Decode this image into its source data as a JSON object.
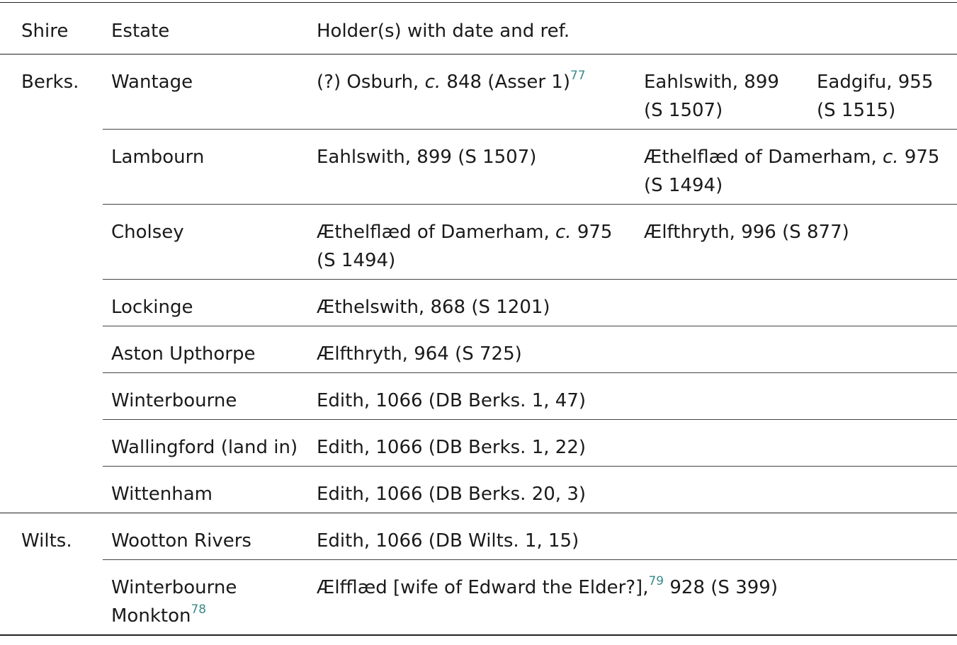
{
  "table": {
    "header": [
      "Shire",
      "Estate",
      "Holder(s) with date and ref."
    ],
    "groups": [
      {
        "shire": "Berks.",
        "rows": [
          {
            "estate": [
              {
                "text": "Wantage"
              }
            ],
            "holders": [
              [
                {
                  "text": "(?) Osburh, "
                },
                {
                  "text": "c.",
                  "style": "italic"
                },
                {
                  "text": " 848 (Asser 1)"
                },
                {
                  "text": "77",
                  "style": "superscript"
                }
              ],
              [
                {
                  "text": "Eahlswith, 899 (S 1507)"
                }
              ],
              [
                {
                  "text": "Eadgifu, 955 (S 1515)"
                }
              ]
            ]
          },
          {
            "estate": [
              {
                "text": "Lambourn"
              }
            ],
            "holders": [
              [
                {
                  "text": "Eahlswith, 899 (S 1507)"
                }
              ],
              [
                {
                  "text": "Æthelflæd of Damerham, "
                },
                {
                  "text": "c.",
                  "style": "italic"
                },
                {
                  "text": " 975 (S 1494)"
                }
              ]
            ]
          },
          {
            "estate": [
              {
                "text": "Cholsey"
              }
            ],
            "holders": [
              [
                {
                  "text": "Æthelflæd of Damerham, "
                },
                {
                  "text": "c.",
                  "style": "italic"
                },
                {
                  "text": " 975 (S 1494)"
                }
              ],
              [
                {
                  "text": "Ælfthryth, 996 (S 877)"
                }
              ]
            ]
          },
          {
            "estate": [
              {
                "text": "Lockinge"
              }
            ],
            "holders": [
              [
                {
                  "text": "Æthelswith, 868 (S 1201)"
                }
              ]
            ]
          },
          {
            "estate": [
              {
                "text": "Aston Upthorpe"
              }
            ],
            "holders": [
              [
                {
                  "text": "Ælfthryth, 964 (S 725)"
                }
              ]
            ]
          },
          {
            "estate": [
              {
                "text": "Winterbourne"
              }
            ],
            "holders": [
              [
                {
                  "text": "Edith, 1066 (DB Berks. 1, 47)"
                }
              ]
            ]
          },
          {
            "estate": [
              {
                "text": "Wallingford (land in)"
              }
            ],
            "holders": [
              [
                {
                  "text": "Edith, 1066 (DB Berks. 1, 22)"
                }
              ]
            ]
          },
          {
            "estate": [
              {
                "text": "Wittenham"
              }
            ],
            "holders": [
              [
                {
                  "text": "Edith, 1066 (DB Berks. 20, 3)"
                }
              ]
            ]
          }
        ]
      },
      {
        "shire": "Wilts.",
        "rows": [
          {
            "estate": [
              {
                "text": "Wootton Rivers"
              }
            ],
            "holders": [
              [
                {
                  "text": "Edith, 1066 (DB Wilts. 1, 15)"
                }
              ]
            ]
          },
          {
            "estate": [
              {
                "text": "Winterbourne Monkton"
              },
              {
                "text": "78",
                "style": "superscript"
              }
            ],
            "holders": [
              [
                {
                  "text": "Ælfflæd [wife of Edward the Elder?],"
                },
                {
                  "text": "79",
                  "style": "superscript"
                },
                {
                  "text": " 928 (S 399)"
                }
              ]
            ]
          }
        ]
      }
    ]
  }
}
